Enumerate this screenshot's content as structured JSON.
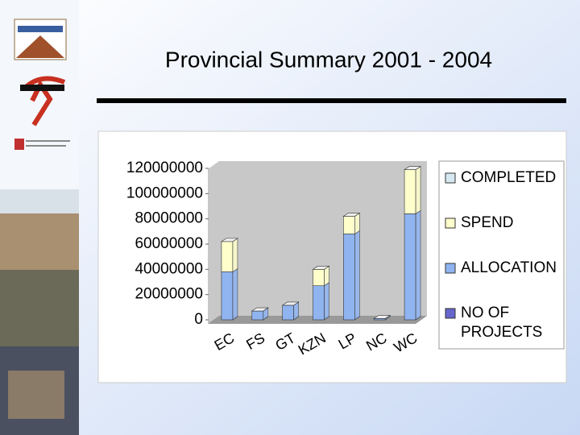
{
  "chart_data": {
    "type": "bar",
    "stacked": true,
    "title": "Provincial Summary 2001 - 2004",
    "categories": [
      "EC",
      "FS",
      "GT",
      "KZN",
      "LP",
      "NC",
      "WC"
    ],
    "series": [
      {
        "name": "COMPLETED",
        "color": "#d6e8f2",
        "values": [
          0,
          0,
          0,
          0,
          0,
          0,
          0
        ]
      },
      {
        "name": "SPEND",
        "color": "#ffffcc",
        "values": [
          24000000,
          0,
          0,
          13000000,
          14000000,
          0,
          35000000
        ]
      },
      {
        "name": "ALLOCATION",
        "color": "#8fb4f0",
        "values": [
          38000000,
          7000000,
          11500000,
          27000000,
          68000000,
          1000000,
          84000000
        ]
      },
      {
        "name": "NO OF PROJECTS",
        "color": "#6666cc",
        "values": [
          0,
          0,
          0,
          0,
          0,
          0,
          0
        ]
      }
    ],
    "ylim": [
      0,
      120000000
    ],
    "yticks": [
      0,
      20000000,
      40000000,
      60000000,
      80000000,
      100000000,
      120000000
    ]
  }
}
